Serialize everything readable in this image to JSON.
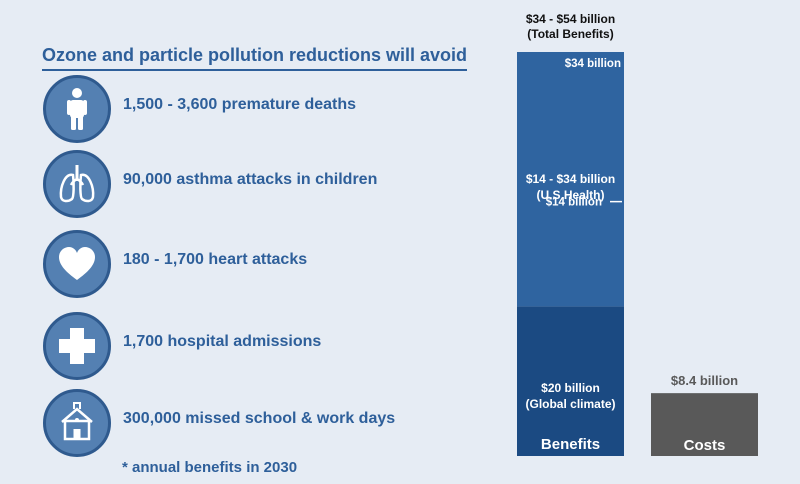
{
  "heading": "Ozone and particle pollution reductions will avoid",
  "items": [
    {
      "icon": "person-icon",
      "label": "1,500 - 3,600 premature deaths"
    },
    {
      "icon": "lungs-icon",
      "label": "90,000 asthma attacks in children"
    },
    {
      "icon": "heart-icon",
      "label": "180 - 1,700 heart attacks"
    },
    {
      "icon": "medical-cross-icon",
      "label": "1,700  hospital admissions"
    },
    {
      "icon": "schoolhouse-icon",
      "label": "300,000 missed school & work days"
    }
  ],
  "footnote": "* annual benefits in 2030",
  "colors": {
    "health": "#2f64a0",
    "climate": "#1b4a82",
    "costs": "#595959",
    "text_blue": "#2e5f9a"
  },
  "chart_data": {
    "type": "bar",
    "unit": "billion",
    "categories": [
      "Benefits",
      "Costs"
    ],
    "ylim": [
      0,
      54
    ],
    "bars": [
      {
        "category": "Benefits",
        "total_label_line1": "$34 - $54 billion",
        "total_label_line2": "(Total Benefits)",
        "segments": [
          {
            "key": "climate",
            "low": 0,
            "high": 20,
            "label_line1": "$20 billion",
            "label_line2": "(Global climate)"
          },
          {
            "key": "health",
            "low": 20,
            "high": 54,
            "label_line1": "$14 - $34 billion",
            "label_line2": "(U.S Health)"
          }
        ],
        "markers": [
          {
            "value": 54,
            "label": "$34 billion"
          },
          {
            "value": 34,
            "label": "$14 billion"
          }
        ]
      },
      {
        "category": "Costs",
        "value": 8.4,
        "label": "$8.4 billion"
      }
    ]
  }
}
